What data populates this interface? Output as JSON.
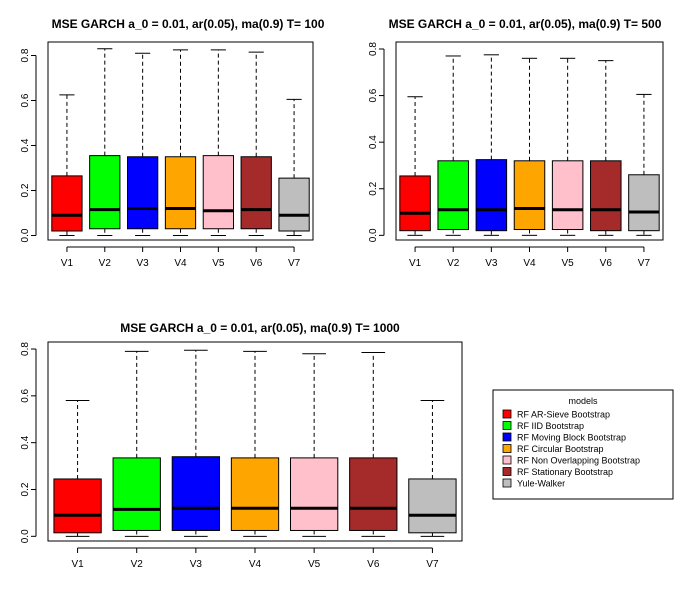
{
  "chart_data": [
    {
      "type": "boxplot",
      "title": "MSE GARCH a_0 = 0.01, ar(0.05), ma(0.9)  T= 100",
      "categories": [
        "V1",
        "V2",
        "V3",
        "V4",
        "V5",
        "V6",
        "V7"
      ],
      "yticks": [
        "0.0",
        "0.2",
        "0.4",
        "0.6",
        "0.8"
      ],
      "ylim": [
        -0.02,
        0.86
      ],
      "boxes": [
        {
          "min": 0.0,
          "q1": 0.02,
          "median": 0.09,
          "q3": 0.265,
          "max": 0.625
        },
        {
          "min": 0.0,
          "q1": 0.03,
          "median": 0.115,
          "q3": 0.355,
          "max": 0.83
        },
        {
          "min": 0.0,
          "q1": 0.03,
          "median": 0.12,
          "q3": 0.35,
          "max": 0.81
        },
        {
          "min": 0.0,
          "q1": 0.03,
          "median": 0.12,
          "q3": 0.35,
          "max": 0.825
        },
        {
          "min": 0.0,
          "q1": 0.03,
          "median": 0.11,
          "q3": 0.355,
          "max": 0.825
        },
        {
          "min": 0.0,
          "q1": 0.03,
          "median": 0.115,
          "q3": 0.35,
          "max": 0.815
        },
        {
          "min": 0.0,
          "q1": 0.02,
          "median": 0.09,
          "q3": 0.255,
          "max": 0.605
        }
      ]
    },
    {
      "type": "boxplot",
      "title": "MSE GARCH a_0 = 0.01, ar(0.05), ma(0.9)  T= 500",
      "categories": [
        "V1",
        "V2",
        "V3",
        "V4",
        "V5",
        "V6",
        "V7"
      ],
      "yticks": [
        "0.0",
        "0.2",
        "0.4",
        "0.6",
        "0.8"
      ],
      "ylim": [
        -0.02,
        0.83
      ],
      "boxes": [
        {
          "min": 0.0,
          "q1": 0.02,
          "median": 0.095,
          "q3": 0.255,
          "max": 0.595
        },
        {
          "min": 0.0,
          "q1": 0.025,
          "median": 0.11,
          "q3": 0.32,
          "max": 0.77
        },
        {
          "min": 0.0,
          "q1": 0.02,
          "median": 0.11,
          "q3": 0.325,
          "max": 0.775
        },
        {
          "min": 0.0,
          "q1": 0.025,
          "median": 0.115,
          "q3": 0.32,
          "max": 0.76
        },
        {
          "min": 0.0,
          "q1": 0.025,
          "median": 0.11,
          "q3": 0.32,
          "max": 0.76
        },
        {
          "min": 0.0,
          "q1": 0.02,
          "median": 0.11,
          "q3": 0.32,
          "max": 0.75
        },
        {
          "min": 0.0,
          "q1": 0.02,
          "median": 0.1,
          "q3": 0.26,
          "max": 0.605
        }
      ]
    },
    {
      "type": "boxplot",
      "title": "MSE GARCH a_0 = 0.01, ar(0.05), ma(0.9)  T= 1000",
      "categories": [
        "V1",
        "V2",
        "V3",
        "V4",
        "V5",
        "V6",
        "V7"
      ],
      "yticks": [
        "0.0",
        "0.2",
        "0.4",
        "0.6",
        "0.8"
      ],
      "ylim": [
        -0.02,
        0.83
      ],
      "boxes": [
        {
          "min": 0.0,
          "q1": 0.015,
          "median": 0.09,
          "q3": 0.245,
          "max": 0.58
        },
        {
          "min": 0.0,
          "q1": 0.025,
          "median": 0.115,
          "q3": 0.335,
          "max": 0.79
        },
        {
          "min": 0.0,
          "q1": 0.025,
          "median": 0.12,
          "q3": 0.34,
          "max": 0.795
        },
        {
          "min": 0.0,
          "q1": 0.025,
          "median": 0.12,
          "q3": 0.335,
          "max": 0.79
        },
        {
          "min": 0.0,
          "q1": 0.025,
          "median": 0.12,
          "q3": 0.335,
          "max": 0.78
        },
        {
          "min": 0.0,
          "q1": 0.025,
          "median": 0.12,
          "q3": 0.335,
          "max": 0.785
        },
        {
          "min": 0.0,
          "q1": 0.015,
          "median": 0.09,
          "q3": 0.245,
          "max": 0.58
        }
      ]
    }
  ],
  "legend": {
    "title": "models",
    "items": [
      {
        "label": "RF AR-Sieve Bootstrap",
        "color": "#ff0000"
      },
      {
        "label": "RF IID Bootstrap",
        "color": "#00ff00"
      },
      {
        "label": "RF Moving Block Bootstrap",
        "color": "#0000ff"
      },
      {
        "label": "RF Circular Bootstrap",
        "color": "#ffa500"
      },
      {
        "label": "RF Non Overlapping Bootstrap",
        "color": "#ffc0cb"
      },
      {
        "label": "RF Stationary Bootstrap",
        "color": "#a52a2a"
      },
      {
        "label": "Yule-Walker",
        "color": "#bebebe"
      }
    ]
  }
}
